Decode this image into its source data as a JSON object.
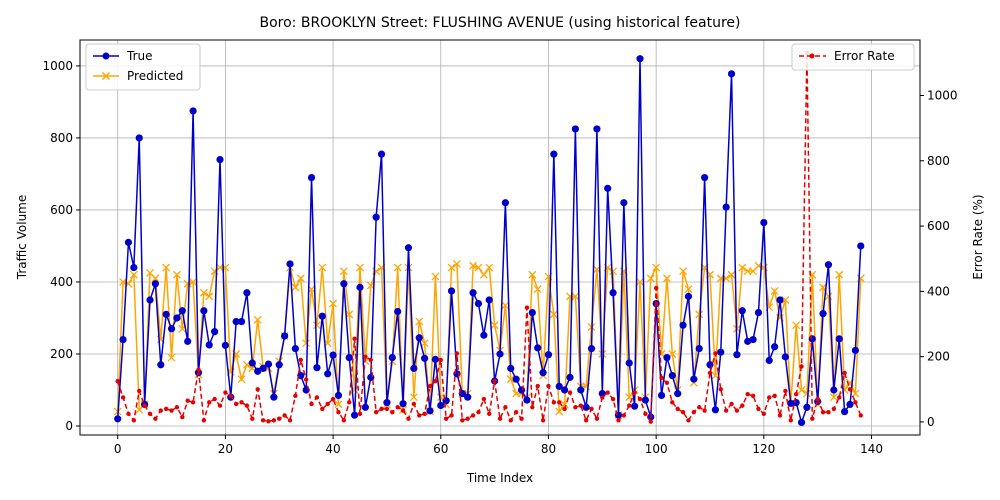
{
  "chart_data": {
    "type": "line",
    "title": "Boro: BROOKLYN Street: FLUSHING AVENUE (using historical feature)",
    "xlabel": "Time Index",
    "ylabel": "Traffic Volume",
    "y2label": "Error Rate (%)",
    "xlim": [
      -7,
      149
    ],
    "ylim": [
      -25,
      1072
    ],
    "y2lim": [
      -40,
      1170
    ],
    "xticks": [
      0,
      20,
      40,
      60,
      80,
      100,
      120,
      140
    ],
    "yticks": [
      0,
      200,
      400,
      600,
      800,
      1000
    ],
    "y2ticks": [
      0,
      200,
      400,
      600,
      800,
      1000
    ],
    "grid": true,
    "legend_left_position": "upper-left",
    "legend_right_position": "upper-right",
    "colors": {
      "true": "#0000cc",
      "predicted": "#ffa500",
      "error": "#e60000"
    },
    "series": [
      {
        "name": "True",
        "axis": "left",
        "values": [
          20,
          240,
          510,
          440,
          800,
          60,
          350,
          395,
          170,
          310,
          270,
          300,
          320,
          235,
          875,
          148,
          320,
          225,
          262,
          740,
          224,
          80,
          290,
          290,
          370,
          175,
          152,
          160,
          172,
          80,
          170,
          250,
          450,
          215,
          140,
          100,
          690,
          162,
          305,
          145,
          197,
          85,
          395,
          190,
          30,
          385,
          52,
          135,
          580,
          755,
          65,
          190,
          318,
          62,
          495,
          160,
          245,
          188,
          42,
          185,
          57,
          70,
          375,
          145,
          90,
          80,
          370,
          340,
          252,
          350,
          125,
          200,
          620,
          160,
          130,
          100,
          72,
          315,
          217,
          148,
          198,
          755,
          110,
          100,
          135,
          825,
          100,
          52,
          215,
          825,
          90,
          660,
          370,
          30,
          620,
          175,
          55,
          1020,
          72,
          25,
          340,
          85,
          190,
          140,
          90,
          280,
          360,
          130,
          215,
          690,
          170,
          45,
          205,
          608,
          978,
          198,
          320,
          235,
          240,
          315,
          565,
          182,
          220,
          350,
          192,
          63,
          65,
          10,
          52,
          242,
          68,
          312,
          448,
          100,
          242,
          40,
          60,
          210,
          500
        ]
      },
      {
        "name": "Predicted",
        "axis": "left",
        "values": [
          40,
          400,
          395,
          420,
          45,
          60,
          425,
          410,
          240,
          440,
          190,
          420,
          270,
          395,
          400,
          143,
          370,
          360,
          430,
          440,
          440,
          150,
          200,
          130,
          170,
          160,
          295,
          165,
          160,
          90,
          180,
          250,
          440,
          385,
          410,
          230,
          380,
          280,
          440,
          230,
          340,
          60,
          430,
          310,
          100,
          440,
          180,
          390,
          430,
          440,
          60,
          180,
          440,
          45,
          440,
          80,
          290,
          230,
          40,
          415,
          80,
          60,
          440,
          450,
          90,
          90,
          445,
          440,
          420,
          440,
          280,
          210,
          335,
          130,
          90,
          90,
          80,
          420,
          380,
          140,
          415,
          310,
          40,
          60,
          360,
          360,
          110,
          110,
          275,
          435,
          200,
          440,
          430,
          30,
          430,
          80,
          100,
          400,
          80,
          410,
          440,
          200,
          410,
          200,
          100,
          430,
          380,
          120,
          310,
          440,
          420,
          140,
          410,
          410,
          420,
          270,
          440,
          430,
          430,
          445,
          440,
          330,
          375,
          300,
          350,
          60,
          280,
          100,
          90,
          420,
          60,
          385,
          360,
          80,
          420,
          100,
          120,
          90,
          410
        ]
      },
      {
        "name": "Error Rate",
        "axis": "right",
        "values": [
          125,
          75,
          25,
          5,
          95,
          50,
          25,
          10,
          35,
          40,
          35,
          45,
          15,
          65,
          60,
          160,
          5,
          60,
          70,
          50,
          90,
          80,
          55,
          60,
          50,
          10,
          100,
          5,
          2,
          5,
          10,
          20,
          5,
          80,
          190,
          130,
          55,
          75,
          40,
          55,
          70,
          30,
          5,
          60,
          255,
          25,
          200,
          190,
          30,
          40,
          40,
          30,
          45,
          35,
          10,
          55,
          20,
          25,
          110,
          125,
          190,
          10,
          20,
          210,
          5,
          10,
          20,
          30,
          70,
          25,
          125,
          10,
          45,
          5,
          30,
          10,
          350,
          45,
          110,
          5,
          110,
          60,
          60,
          40,
          90,
          45,
          50,
          5,
          40,
          10,
          75,
          90,
          70,
          5,
          20,
          50,
          90,
          70,
          25,
          1,
          410,
          135,
          120,
          60,
          40,
          30,
          5,
          30,
          45,
          35,
          150,
          210,
          100,
          35,
          55,
          35,
          50,
          85,
          80,
          40,
          25,
          75,
          80,
          20,
          95,
          5,
          85,
          170,
          1130,
          10,
          70,
          30,
          30,
          40,
          75,
          150,
          100,
          60,
          20
        ]
      }
    ]
  }
}
